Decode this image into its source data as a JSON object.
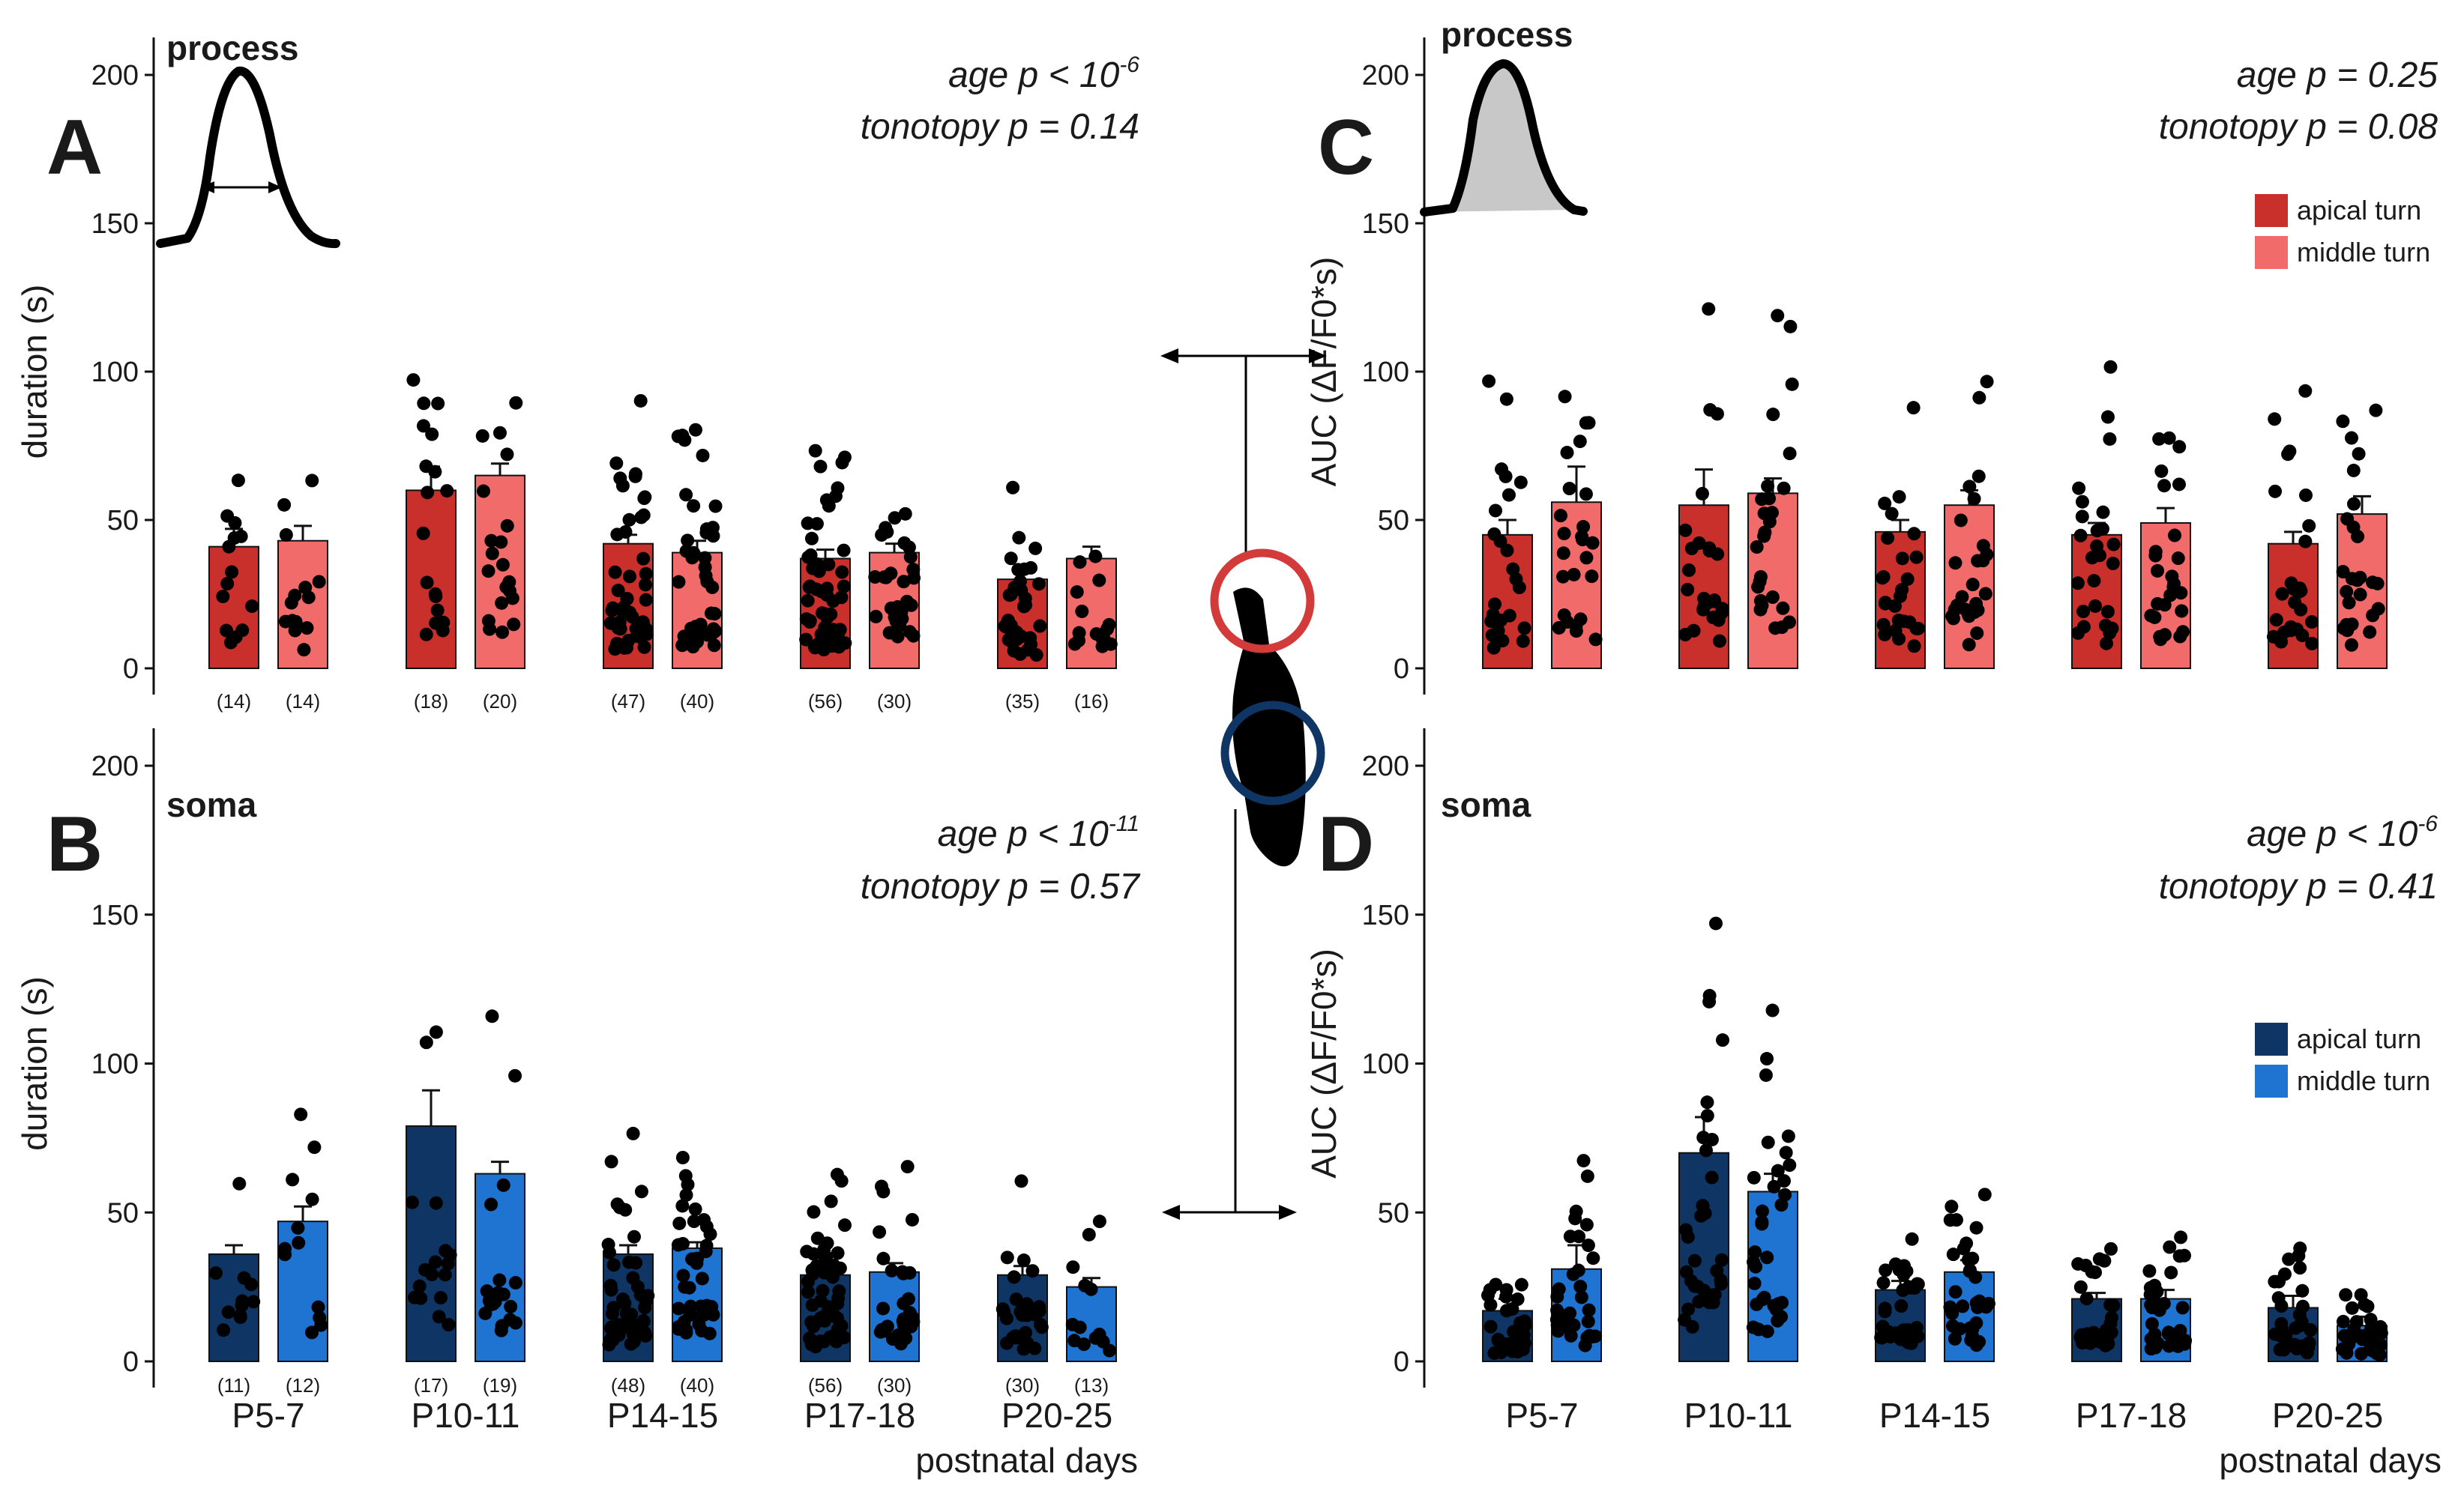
{
  "colors": {
    "process_apical": "#C9302C",
    "process_middle": "#F26B6B",
    "soma_apical": "#0E3563",
    "soma_middle": "#1F73D1",
    "dot": "#000000"
  },
  "x_label": "postnatal days",
  "legends": {
    "process": [
      {
        "label": "apical turn",
        "color": "#C9302C"
      },
      {
        "label": "middle turn",
        "color": "#F26B6B"
      }
    ],
    "soma": [
      {
        "label": "apical turn",
        "color": "#0E3563"
      },
      {
        "label": "middle turn",
        "color": "#1F73D1"
      }
    ]
  },
  "chart_data": [
    {
      "id": "A",
      "type": "bar",
      "panel_label": "A",
      "title": "process",
      "ylabel": "duration (s)",
      "xlabel": "",
      "ylim": [
        0,
        200
      ],
      "yticks": [
        0,
        50,
        100,
        150,
        200
      ],
      "stat_age": "age p < 10",
      "stat_age_exp": "-6",
      "stat_tonotopy": "tonotopy p = 0.14",
      "categories": [
        "P5-7",
        "P10-11",
        "P14-15",
        "P17-18",
        "P20-25"
      ],
      "show_categories": false,
      "show_legend": false,
      "show_xtitle": false,
      "series": [
        {
          "name": "apical turn",
          "values": [
            41,
            60,
            42,
            37,
            30
          ],
          "sem": [
            6,
            8,
            3,
            3,
            3
          ],
          "n": [
            "(14)",
            "(18)",
            "(47)",
            "(56)",
            "(35)"
          ]
        },
        {
          "name": "middle turn",
          "values": [
            43,
            65,
            39,
            39,
            37
          ],
          "sem": [
            5,
            4,
            4,
            3,
            4
          ],
          "n": [
            "(14)",
            "(20)",
            "(40)",
            "(30)",
            "(16)"
          ]
        }
      ]
    },
    {
      "id": "B",
      "type": "bar",
      "panel_label": "B",
      "title": "soma",
      "ylabel": "duration (s)",
      "xlabel": "postnatal days",
      "ylim": [
        0,
        200
      ],
      "yticks": [
        0,
        50,
        100,
        150,
        200
      ],
      "stat_age": "age p < 10",
      "stat_age_exp": "-11",
      "stat_tonotopy": "tonotopy p = 0.57",
      "categories": [
        "P5-7",
        "P10-11",
        "P14-15",
        "P17-18",
        "P20-25"
      ],
      "show_categories": true,
      "show_legend": false,
      "show_xtitle": true,
      "series": [
        {
          "name": "apical turn",
          "values": [
            36,
            79,
            36,
            29,
            29
          ],
          "sem": [
            3,
            12,
            3,
            2,
            3
          ],
          "n": [
            "(11)",
            "(17)",
            "(48)",
            "(56)",
            "(30)"
          ]
        },
        {
          "name": "middle turn",
          "values": [
            47,
            63,
            38,
            30,
            25
          ],
          "sem": [
            5,
            4,
            2,
            3,
            3
          ],
          "n": [
            "(12)",
            "(19)",
            "(40)",
            "(30)",
            "(13)"
          ]
        }
      ]
    },
    {
      "id": "C",
      "type": "bar",
      "panel_label": "C",
      "title": "process",
      "ylabel": "AUC (ΔF/F0*s)",
      "xlabel": "",
      "ylim": [
        0,
        200
      ],
      "yticks": [
        0,
        50,
        100,
        150,
        200
      ],
      "stat_age": "age p = 0.25",
      "stat_age_exp": "",
      "stat_tonotopy": "tonotopy p = 0.08",
      "categories": [
        "P5-7",
        "P10-11",
        "P14-15",
        "P17-18",
        "P20-25"
      ],
      "show_categories": false,
      "show_legend": true,
      "legend_key": "process",
      "show_xtitle": false,
      "series": [
        {
          "name": "apical turn",
          "values": [
            45,
            55,
            46,
            45,
            42
          ],
          "sem": [
            5,
            12,
            4,
            4,
            4
          ],
          "n": []
        },
        {
          "name": "middle turn",
          "values": [
            56,
            59,
            55,
            49,
            52
          ],
          "sem": [
            12,
            5,
            5,
            5,
            6
          ],
          "n": []
        }
      ]
    },
    {
      "id": "D",
      "type": "bar",
      "panel_label": "D",
      "title": "soma",
      "ylabel": "AUC (ΔF/F0*s)",
      "xlabel": "postnatal days",
      "ylim": [
        0,
        200
      ],
      "yticks": [
        0,
        50,
        100,
        150,
        200
      ],
      "stat_age": "age p < 10",
      "stat_age_exp": "-6",
      "stat_tonotopy": "tonotopy p = 0.41",
      "categories": [
        "P5-7",
        "P10-11",
        "P14-15",
        "P17-18",
        "P20-25"
      ],
      "show_categories": true,
      "show_legend": true,
      "legend_key": "soma",
      "show_xtitle": true,
      "series": [
        {
          "name": "apical turn",
          "values": [
            17,
            70,
            24,
            21,
            18
          ],
          "sem": [
            4,
            12,
            3,
            2,
            4
          ],
          "n": []
        },
        {
          "name": "middle turn",
          "values": [
            31,
            57,
            30,
            21,
            12
          ],
          "sem": [
            8,
            6,
            4,
            3,
            3
          ],
          "n": []
        }
      ]
    }
  ]
}
